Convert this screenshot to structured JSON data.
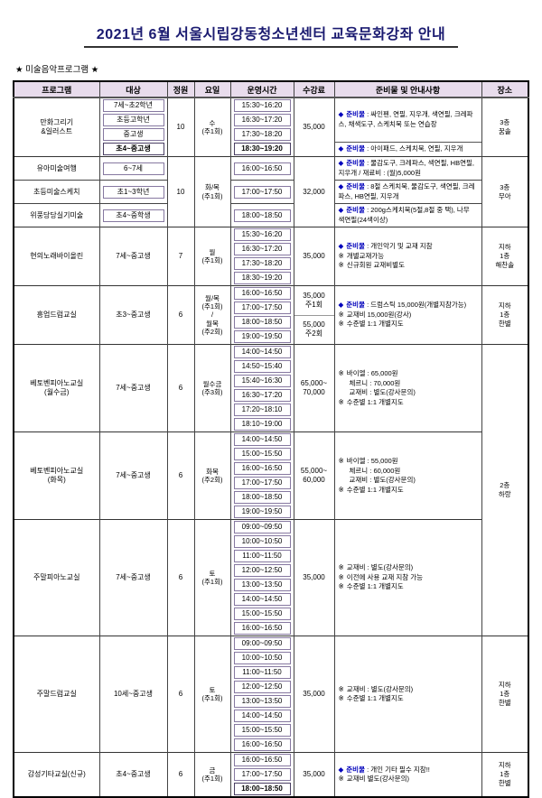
{
  "page": {
    "title": "2021년 6월 서울시립강동청소년센터 교육문화강좌 안내",
    "section_label": "★ 미술음악프로그램 ★"
  },
  "colors": {
    "accent_blue": "#0000bb",
    "header_bg": "#e8dcec",
    "title_navy": "#1a1a70",
    "grid": "#444444",
    "box_border": "#8678a0"
  },
  "table": {
    "headers": [
      "프로그램",
      "대상",
      "정원",
      "요일",
      "운영시간",
      "수강료",
      "준비물 및 안내사항",
      "장소"
    ],
    "rows": [
      {
        "g": "g1",
        "start": true,
        "cells": [
          {
            "t": "program",
            "x": "만화그리기\n&일러스트",
            "rs": 4
          },
          {
            "t": "target",
            "x": "7세~초2학년",
            "box": true
          },
          {
            "t": "capacity",
            "x": "10",
            "rs": 4
          },
          {
            "t": "day",
            "x": "수\n(주1회)",
            "rs": 4
          },
          {
            "t": "time",
            "x": "15:30~16:20",
            "box": true
          },
          {
            "t": "fee",
            "x": "35,000",
            "rs": 4
          },
          {
            "t": "notes",
            "rs": 3,
            "lines": [
              {
                "b": "◆",
                "l": "준비물",
                "x": "싸인펜, 연필, 지우개, 색연필, 크레파스, 채색도구, 스케치북 또는 연습장"
              }
            ]
          },
          {
            "t": "place",
            "x": "3층\n꿈솔",
            "rs": 4
          }
        ]
      },
      {
        "g": "g1",
        "cells": [
          {
            "t": "target",
            "x": "초등고학년",
            "box": true
          },
          {
            "t": "time",
            "x": "16:30~17:20",
            "box": true
          }
        ]
      },
      {
        "g": "g1",
        "cells": [
          {
            "t": "target",
            "x": "중고생",
            "box": true
          },
          {
            "t": "time",
            "x": "17:30~18:20",
            "box": true
          }
        ]
      },
      {
        "g": "g1",
        "cells": [
          {
            "t": "target",
            "x": "초4~중고생",
            "box": true,
            "bold": true
          },
          {
            "t": "time",
            "x": "18:30~19:20",
            "box": true,
            "bold": true
          },
          {
            "t": "notes",
            "tl": true,
            "lines": [
              {
                "b": "◆",
                "l": "준비물",
                "x": "아이패드, 스케치북, 연필, 지우개"
              }
            ]
          }
        ]
      },
      {
        "g": "g2",
        "start": true,
        "cells": [
          {
            "t": "program",
            "x": "유아미술여행"
          },
          {
            "t": "target",
            "x": "6~7세",
            "box": true
          },
          {
            "t": "capacity",
            "x": "10",
            "rs": 3
          },
          {
            "t": "day",
            "x": "화/목\n(주1회)",
            "rs": 3
          },
          {
            "t": "time",
            "x": "16:00~16:50",
            "box": true
          },
          {
            "t": "fee",
            "x": "32,000",
            "rs": 3
          },
          {
            "t": "notes",
            "lines": [
              {
                "b": "◆",
                "l": "준비물",
                "x": "물감도구, 크레파스, 색연필, HB연필, 지우개 / 재료비 : (월)5,000원"
              }
            ]
          },
          {
            "t": "place",
            "x": "3층\n무아",
            "rs": 3
          }
        ]
      },
      {
        "g": "g2",
        "rl": true,
        "cells": [
          {
            "t": "program",
            "x": "초등미술스케치"
          },
          {
            "t": "target",
            "x": "초1~3학년",
            "box": true
          },
          {
            "t": "time",
            "x": "17:00~17:50",
            "box": true
          },
          {
            "t": "notes",
            "lines": [
              {
                "b": "◆",
                "l": "준비물",
                "x": "8절 스케치북, 물감도구, 색연필, 크레파스, HB연필, 지우개"
              }
            ]
          }
        ]
      },
      {
        "g": "g2",
        "rl": true,
        "cells": [
          {
            "t": "program",
            "x": "위풍당당실기미술"
          },
          {
            "t": "target",
            "x": "초4~중학생",
            "box": true
          },
          {
            "t": "time",
            "x": "18:00~18:50",
            "box": true
          },
          {
            "t": "notes",
            "lines": [
              {
                "b": "◆",
                "l": "준비물",
                "x": "200g스케치북(5절,8절 중 택), 나무 색연필(24색이상)"
              }
            ]
          }
        ]
      },
      {
        "g": "g3",
        "start": true,
        "cells": [
          {
            "t": "program",
            "x": "현의노래바이올린",
            "rs": 4
          },
          {
            "t": "target",
            "x": "7세~중고생",
            "rs": 4
          },
          {
            "t": "capacity",
            "x": "7",
            "rs": 4
          },
          {
            "t": "day",
            "x": "월\n(주1회)",
            "rs": 4
          },
          {
            "t": "time",
            "x": "15:30~16:20",
            "box": true
          },
          {
            "t": "fee",
            "x": "35,000",
            "rs": 4
          },
          {
            "t": "notes",
            "rs": 4,
            "lines": [
              {
                "b": "◆",
                "l": "준비물",
                "x": "개인악기 및 교재 지참"
              },
              {
                "b": "※",
                "x": "개별교재가능"
              },
              {
                "b": "※",
                "x": "신규회원 교재비별도"
              }
            ]
          },
          {
            "t": "place",
            "x": "지하\n1층\n해찬솔",
            "rs": 4
          }
        ]
      },
      {
        "g": "g3",
        "cells": [
          {
            "t": "time",
            "x": "16:30~17:20",
            "box": true
          }
        ]
      },
      {
        "g": "g3",
        "cells": [
          {
            "t": "time",
            "x": "17:30~18:20",
            "box": true
          }
        ]
      },
      {
        "g": "g3",
        "cells": [
          {
            "t": "time",
            "x": "18:30~19:20",
            "box": true
          }
        ]
      },
      {
        "g": "g4",
        "start": true,
        "cells": [
          {
            "t": "program",
            "x": "흥업드럼교실",
            "rs": 4
          },
          {
            "t": "target",
            "x": "초3~중고생",
            "rs": 4
          },
          {
            "t": "capacity",
            "x": "6",
            "rs": 4
          },
          {
            "t": "day",
            "x": "월/목\n(주1회)\n/\n월목\n(주2회)",
            "rs": 4
          },
          {
            "t": "time",
            "x": "16:00~16:50",
            "box": true
          },
          {
            "t": "fee",
            "x": "35,000\n주1회",
            "rs": 2
          },
          {
            "t": "notes",
            "rs": 4,
            "lines": [
              {
                "b": "◆",
                "l": "준비물",
                "x": "드럼스틱 15,000원(개별지참가능)"
              },
              {
                "b": "※",
                "x": "교재비 15,000원(강사)"
              },
              {
                "b": "※",
                "x": "수준별 1:1 개별지도"
              }
            ]
          },
          {
            "t": "place",
            "x": "지하\n1층\n한별",
            "rs": 4
          }
        ]
      },
      {
        "g": "g4",
        "cells": [
          {
            "t": "time",
            "x": "17:00~17:50",
            "box": true
          }
        ]
      },
      {
        "g": "g4",
        "cells": [
          {
            "t": "time",
            "x": "18:00~18:50",
            "box": true
          },
          {
            "t": "fee",
            "x": "55,000\n주2회",
            "rs": 2,
            "tl": true
          }
        ]
      },
      {
        "g": "g4",
        "cells": [
          {
            "t": "time",
            "x": "19:00~19:50",
            "box": true
          }
        ]
      },
      {
        "g": "g5",
        "start": true,
        "cells": [
          {
            "t": "program",
            "x": "베토벤피아노교실\n(월수금)",
            "rs": 6
          },
          {
            "t": "target",
            "x": "7세~중고생",
            "rs": 6
          },
          {
            "t": "capacity",
            "x": "6",
            "rs": 6
          },
          {
            "t": "day",
            "x": "월수금\n(주3회)",
            "rs": 6
          },
          {
            "t": "time",
            "x": "14:00~14:50",
            "box": true
          },
          {
            "t": "fee",
            "x": "65,000~\n70,000",
            "rs": 6
          },
          {
            "t": "notes",
            "rs": 6,
            "lines": [
              {
                "b": "※",
                "x": "바이엘 : 65,000원"
              },
              {
                "x": "체르니 : 70,000원"
              },
              {
                "x": "교재비 : 별도(강사문의)"
              },
              {
                "b": "※",
                "x": "수준별 1:1 개별지도"
              }
            ]
          },
          {
            "t": "place",
            "x": "2층\n하랑",
            "rs": 20
          }
        ]
      },
      {
        "g": "g5",
        "cells": [
          {
            "t": "time",
            "x": "14:50~15:40",
            "box": true
          }
        ]
      },
      {
        "g": "g5",
        "cells": [
          {
            "t": "time",
            "x": "15:40~16:30",
            "box": true
          }
        ]
      },
      {
        "g": "g5",
        "cells": [
          {
            "t": "time",
            "x": "16:30~17:20",
            "box": true
          }
        ]
      },
      {
        "g": "g5",
        "cells": [
          {
            "t": "time",
            "x": "17:20~18:10",
            "box": true
          }
        ]
      },
      {
        "g": "g5",
        "cells": [
          {
            "t": "time",
            "x": "18:10~19:00",
            "box": true
          }
        ]
      },
      {
        "g": "g6",
        "start": true,
        "cells": [
          {
            "t": "program",
            "x": "베토벤피아노교실\n(화목)",
            "rs": 6
          },
          {
            "t": "target",
            "x": "7세~중고생",
            "rs": 6
          },
          {
            "t": "capacity",
            "x": "6",
            "rs": 6
          },
          {
            "t": "day",
            "x": "화목\n(주2회)",
            "rs": 6
          },
          {
            "t": "time",
            "x": "14:00~14:50",
            "box": true
          },
          {
            "t": "fee",
            "x": "55,000~\n60,000",
            "rs": 6
          },
          {
            "t": "notes",
            "rs": 6,
            "lines": [
              {
                "b": "※",
                "x": "바이엘 : 55,000원"
              },
              {
                "x": "체르니 : 60,000원"
              },
              {
                "x": "교재비 : 별도(강사문의)"
              },
              {
                "b": "※",
                "x": "수준별 1:1 개별지도"
              }
            ]
          }
        ]
      },
      {
        "g": "g6",
        "cells": [
          {
            "t": "time",
            "x": "15:00~15:50",
            "box": true
          }
        ]
      },
      {
        "g": "g6",
        "cells": [
          {
            "t": "time",
            "x": "16:00~16:50",
            "box": true
          }
        ]
      },
      {
        "g": "g6",
        "cells": [
          {
            "t": "time",
            "x": "17:00~17:50",
            "box": true
          }
        ]
      },
      {
        "g": "g6",
        "cells": [
          {
            "t": "time",
            "x": "18:00~18:50",
            "box": true
          }
        ]
      },
      {
        "g": "g6",
        "cells": [
          {
            "t": "time",
            "x": "19:00~19:50",
            "box": true
          }
        ]
      },
      {
        "g": "g7",
        "start": true,
        "cells": [
          {
            "t": "program",
            "x": "주말피아노교실",
            "rs": 8
          },
          {
            "t": "target",
            "x": "7세~중고생",
            "rs": 8
          },
          {
            "t": "capacity",
            "x": "6",
            "rs": 8
          },
          {
            "t": "day",
            "x": "토\n(주1회)",
            "rs": 8
          },
          {
            "t": "time",
            "x": "09:00~09:50",
            "box": true
          },
          {
            "t": "fee",
            "x": "35,000",
            "rs": 8
          },
          {
            "t": "notes",
            "rs": 8,
            "lines": [
              {
                "b": "※",
                "x": "교재비 : 별도(강사문의)"
              },
              {
                "b": "※",
                "x": "이전에 사용 교재 지참 가능"
              },
              {
                "b": "※",
                "x": "수준별 1:1 개별지도"
              }
            ]
          }
        ]
      },
      {
        "g": "g7",
        "cells": [
          {
            "t": "time",
            "x": "10:00~10:50",
            "box": true
          }
        ]
      },
      {
        "g": "g7",
        "cells": [
          {
            "t": "time",
            "x": "11:00~11:50",
            "box": true
          }
        ]
      },
      {
        "g": "g7",
        "cells": [
          {
            "t": "time",
            "x": "12:00~12:50",
            "box": true
          }
        ]
      },
      {
        "g": "g7",
        "cells": [
          {
            "t": "time",
            "x": "13:00~13:50",
            "box": true
          }
        ]
      },
      {
        "g": "g7",
        "cells": [
          {
            "t": "time",
            "x": "14:00~14:50",
            "box": true
          }
        ]
      },
      {
        "g": "g7",
        "cells": [
          {
            "t": "time",
            "x": "15:00~15:50",
            "box": true
          }
        ]
      },
      {
        "g": "g7",
        "cells": [
          {
            "t": "time",
            "x": "16:00~16:50",
            "box": true
          }
        ]
      },
      {
        "g": "g8",
        "start": true,
        "cells": [
          {
            "t": "program",
            "x": "주말드럼교실",
            "rs": 8
          },
          {
            "t": "target",
            "x": "10세~중고생",
            "rs": 8
          },
          {
            "t": "capacity",
            "x": "6",
            "rs": 8
          },
          {
            "t": "day",
            "x": "토\n(주1회)",
            "rs": 8
          },
          {
            "t": "time",
            "x": "09:00~09:50",
            "box": true
          },
          {
            "t": "fee",
            "x": "35,000",
            "rs": 8
          },
          {
            "t": "notes",
            "rs": 8,
            "lines": [
              {
                "b": "※",
                "x": "교재비 : 별도(강사문의)"
              },
              {
                "b": "※",
                "x": "수준별 1:1 개별지도"
              }
            ]
          },
          {
            "t": "place",
            "x": "지하\n1층\n한별",
            "rs": 8
          }
        ]
      },
      {
        "g": "g8",
        "cells": [
          {
            "t": "time",
            "x": "10:00~10:50",
            "box": true
          }
        ]
      },
      {
        "g": "g8",
        "cells": [
          {
            "t": "time",
            "x": "11:00~11:50",
            "box": true
          }
        ]
      },
      {
        "g": "g8",
        "cells": [
          {
            "t": "time",
            "x": "12:00~12:50",
            "box": true
          }
        ]
      },
      {
        "g": "g8",
        "cells": [
          {
            "t": "time",
            "x": "13:00~13:50",
            "box": true
          }
        ]
      },
      {
        "g": "g8",
        "cells": [
          {
            "t": "time",
            "x": "14:00~14:50",
            "box": true
          }
        ]
      },
      {
        "g": "g8",
        "cells": [
          {
            "t": "time",
            "x": "15:00~15:50",
            "box": true
          }
        ]
      },
      {
        "g": "g8",
        "cells": [
          {
            "t": "time",
            "x": "16:00~16:50",
            "box": true
          }
        ]
      },
      {
        "g": "g9",
        "start": true,
        "cells": [
          {
            "t": "program",
            "x": "감성기타교실(신규)",
            "rs": 3
          },
          {
            "t": "target",
            "x": "초4~중고생",
            "rs": 3
          },
          {
            "t": "capacity",
            "x": "6",
            "rs": 3
          },
          {
            "t": "day",
            "x": "금\n(주1회)",
            "rs": 3
          },
          {
            "t": "time",
            "x": "16:00~16:50",
            "box": true
          },
          {
            "t": "fee",
            "x": "35,000",
            "rs": 3
          },
          {
            "t": "notes",
            "rs": 3,
            "lines": [
              {
                "b": "◆",
                "l": "준비물",
                "x": "개인 기타 필수 지참!!"
              },
              {
                "b": "※",
                "x": "교재비 별도(강사문의)"
              }
            ]
          },
          {
            "t": "place",
            "x": "지하\n1층\n한별",
            "rs": 3
          }
        ]
      },
      {
        "g": "g9",
        "cells": [
          {
            "t": "time",
            "x": "17:00~17:50",
            "box": true
          }
        ]
      },
      {
        "g": "g9",
        "cells": [
          {
            "t": "time",
            "x": "18:00~18:50",
            "box": true,
            "bold": true
          }
        ]
      }
    ]
  }
}
